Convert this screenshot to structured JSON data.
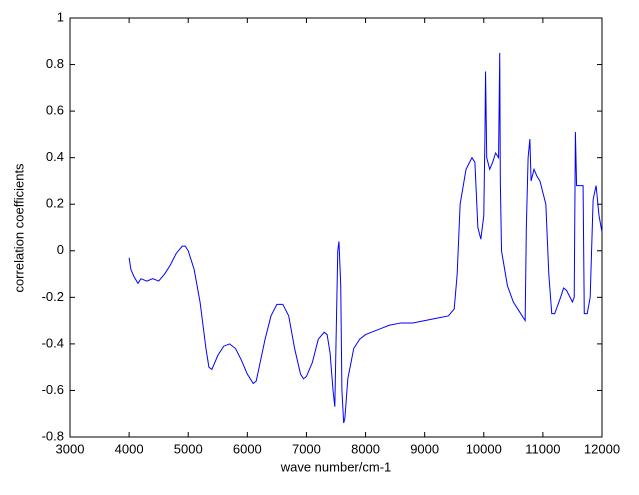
{
  "chart_data": {
    "type": "line",
    "x_label": "wave number/cm-1",
    "y_label": "correlation coefficients",
    "xlim": [
      3000,
      12000
    ],
    "ylim": [
      -0.8,
      1
    ],
    "xticks": [
      3000,
      4000,
      5000,
      6000,
      7000,
      8000,
      9000,
      10000,
      11000,
      12000
    ],
    "yticks": [
      -0.8,
      -0.6,
      -0.4,
      -0.2,
      0,
      0.2,
      0.4,
      0.6,
      0.8,
      1
    ],
    "grid": false,
    "series": [
      {
        "color": "#0000ff",
        "x": [
          4000,
          4030,
          4080,
          4150,
          4200,
          4300,
          4400,
          4500,
          4600,
          4700,
          4800,
          4900,
          4950,
          5000,
          5100,
          5200,
          5300,
          5350,
          5400,
          5500,
          5600,
          5700,
          5800,
          5900,
          6000,
          6100,
          6150,
          6200,
          6300,
          6400,
          6500,
          6600,
          6700,
          6800,
          6900,
          6950,
          7000,
          7100,
          7200,
          7300,
          7350,
          7400,
          7450,
          7480,
          7500,
          7530,
          7550,
          7580,
          7600,
          7630,
          7650,
          7700,
          7800,
          7900,
          8000,
          8200,
          8400,
          8600,
          8800,
          9000,
          9200,
          9400,
          9500,
          9550,
          9600,
          9700,
          9800,
          9850,
          9900,
          9950,
          10000,
          10020,
          10030,
          10050,
          10100,
          10150,
          10200,
          10250,
          10270,
          10280,
          10300,
          10400,
          10500,
          10600,
          10700,
          10720,
          10750,
          10780,
          10800,
          10850,
          10900,
          10950,
          11000,
          11050,
          11100,
          11150,
          11200,
          11300,
          11350,
          11400,
          11500,
          11530,
          11550,
          11570,
          11600,
          11680,
          11700,
          11750,
          11800,
          11850,
          11900,
          11950,
          12000
        ],
        "values": [
          -0.03,
          -0.08,
          -0.11,
          -0.14,
          -0.12,
          -0.13,
          -0.12,
          -0.13,
          -0.1,
          -0.06,
          -0.01,
          0.02,
          0.02,
          0,
          -0.08,
          -0.22,
          -0.42,
          -0.5,
          -0.51,
          -0.45,
          -0.41,
          -0.4,
          -0.42,
          -0.47,
          -0.53,
          -0.57,
          -0.56,
          -0.5,
          -0.38,
          -0.28,
          -0.23,
          -0.23,
          -0.28,
          -0.42,
          -0.53,
          -0.55,
          -0.54,
          -0.48,
          -0.38,
          -0.35,
          -0.36,
          -0.44,
          -0.6,
          -0.67,
          -0.4,
          0,
          0.04,
          -0.15,
          -0.6,
          -0.74,
          -0.72,
          -0.55,
          -0.42,
          -0.38,
          -0.36,
          -0.34,
          -0.32,
          -0.31,
          -0.31,
          -0.3,
          -0.29,
          -0.28,
          -0.25,
          -0.1,
          0.2,
          0.35,
          0.4,
          0.38,
          0.1,
          0.05,
          0.15,
          0.5,
          0.77,
          0.4,
          0.35,
          0.38,
          0.42,
          0.4,
          0.85,
          0.3,
          0,
          -0.15,
          -0.22,
          -0.26,
          -0.3,
          0.1,
          0.4,
          0.48,
          0.3,
          0.35,
          0.32,
          0.3,
          0.25,
          0.2,
          -0.1,
          -0.27,
          -0.27,
          -0.2,
          -0.16,
          -0.17,
          -0.22,
          -0.2,
          0.51,
          0.28,
          0.28,
          0.28,
          -0.27,
          -0.27,
          -0.2,
          0.22,
          0.28,
          0.15,
          0.08
        ]
      }
    ]
  }
}
